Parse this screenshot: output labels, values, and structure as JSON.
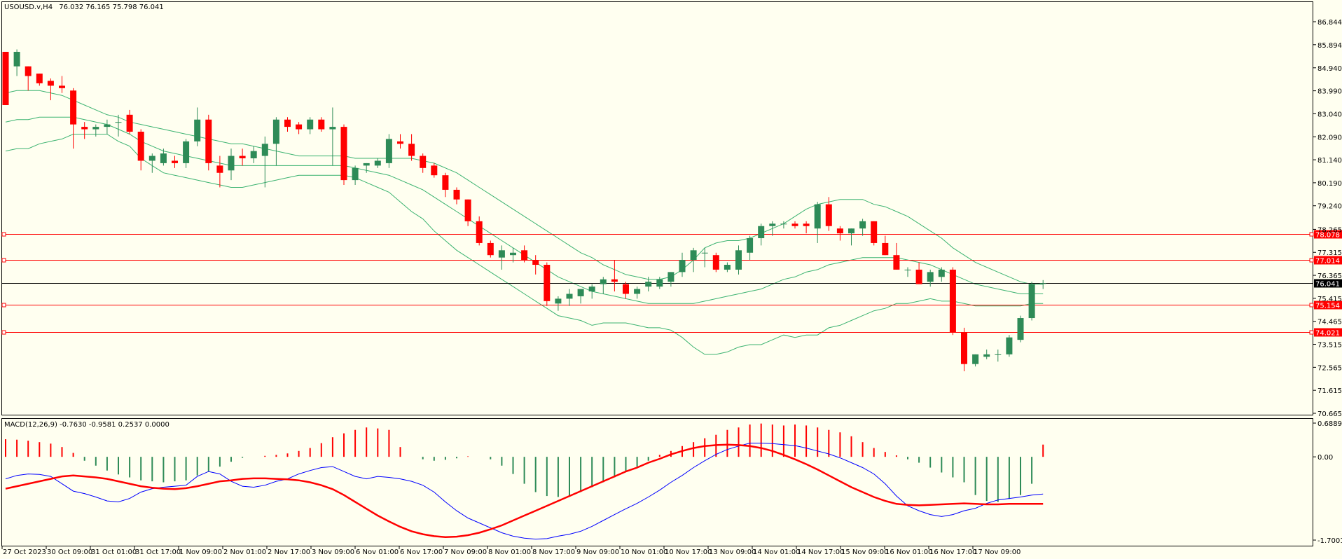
{
  "header": {
    "symbol": "USOUSD.v,H4",
    "ohlc": "76.032 76.165 75.798 76.041"
  },
  "macd_header": {
    "label": "MACD(12,26,9) -0.7630 -0.9581 0.2537 0.0000"
  },
  "colors": {
    "background": "#fffff0",
    "bull": "#2e8b57",
    "bear": "#ff0000",
    "bands": "#3cb371",
    "levels": "#ff0000",
    "price_line": "#000000",
    "macd_main": "#0000ff",
    "macd_signal": "#ff0000"
  },
  "chart_data": [
    {
      "type": "candlestick",
      "title": "USOUSD.v,H4",
      "ylim": [
        70.665,
        87.3
      ],
      "y_ticks": [
        "86.844",
        "85.894",
        "84.940",
        "83.990",
        "83.040",
        "82.090",
        "81.140",
        "80.190",
        "79.240",
        "78.265",
        "77.315",
        "76.365",
        "75.415",
        "74.465",
        "73.515",
        "72.565",
        "71.615",
        "70.665"
      ],
      "x_ticks": [
        "27 Oct 2023",
        "30 Oct 09:00",
        "31 Oct 01:00",
        "31 Oct 17:00",
        "1 Nov 09:00",
        "2 Nov 01:00",
        "2 Nov 17:00",
        "3 Nov 09:00",
        "6 Nov 01:00",
        "6 Nov 17:00",
        "7 Nov 09:00",
        "8 Nov 01:00",
        "8 Nov 17:00",
        "9 Nov 09:00",
        "10 Nov 01:00",
        "10 Nov 17:00",
        "13 Nov 09:00",
        "14 Nov 01:00",
        "14 Nov 17:00",
        "15 Nov 09:00",
        "16 Nov 01:00",
        "16 Nov 17:00",
        "17 Nov 09:00"
      ],
      "horizontal_levels": [
        "78.078",
        "77.014",
        "75.154",
        "74.021"
      ],
      "current_price": "76.041",
      "candles": [
        [
          85.6,
          85.6,
          83.4,
          83.4
        ],
        [
          85.0,
          85.7,
          84.6,
          85.6
        ],
        [
          85.0,
          85.0,
          84.0,
          84.6
        ],
        [
          84.7,
          84.7,
          84.2,
          84.3
        ],
        [
          84.4,
          84.5,
          83.6,
          84.2
        ],
        [
          84.2,
          84.6,
          83.9,
          84.1
        ],
        [
          84.0,
          84.1,
          81.6,
          82.6
        ],
        [
          82.5,
          82.7,
          82.0,
          82.4
        ],
        [
          82.4,
          82.6,
          82.1,
          82.5
        ],
        [
          82.5,
          82.8,
          82.2,
          82.6
        ],
        [
          82.7,
          83.0,
          82.1,
          82.7
        ],
        [
          83.0,
          83.2,
          82.2,
          82.3
        ],
        [
          82.3,
          82.4,
          80.7,
          81.1
        ],
        [
          81.1,
          81.4,
          80.6,
          81.3
        ],
        [
          81.0,
          81.6,
          80.9,
          81.4
        ],
        [
          81.1,
          81.3,
          80.8,
          81.0
        ],
        [
          81.0,
          82.0,
          80.8,
          81.9
        ],
        [
          81.9,
          83.3,
          81.7,
          82.8
        ],
        [
          82.8,
          83.0,
          80.7,
          81.0
        ],
        [
          80.9,
          81.3,
          80.0,
          80.6
        ],
        [
          80.7,
          81.6,
          80.3,
          81.3
        ],
        [
          81.3,
          81.6,
          80.9,
          81.2
        ],
        [
          81.2,
          81.7,
          81.0,
          81.5
        ],
        [
          81.3,
          82.1,
          80.0,
          81.8
        ],
        [
          81.8,
          82.9,
          80.9,
          82.8
        ],
        [
          82.8,
          82.9,
          82.3,
          82.5
        ],
        [
          82.6,
          82.7,
          82.2,
          82.4
        ],
        [
          82.4,
          82.9,
          82.2,
          82.8
        ],
        [
          82.8,
          82.9,
          82.3,
          82.4
        ],
        [
          82.4,
          83.3,
          80.9,
          82.5
        ],
        [
          82.5,
          82.6,
          80.1,
          80.3
        ],
        [
          80.3,
          80.9,
          80.1,
          80.8
        ],
        [
          80.9,
          81.0,
          80.6,
          81.0
        ],
        [
          80.9,
          81.2,
          80.8,
          81.1
        ],
        [
          81.0,
          82.2,
          80.8,
          82.0
        ],
        [
          81.9,
          82.2,
          81.6,
          81.8
        ],
        [
          81.8,
          82.2,
          81.1,
          81.3
        ],
        [
          81.3,
          81.4,
          80.6,
          80.8
        ],
        [
          80.9,
          81.0,
          80.4,
          80.5
        ],
        [
          80.5,
          80.6,
          79.6,
          79.9
        ],
        [
          79.9,
          80.0,
          79.3,
          79.5
        ],
        [
          79.5,
          79.5,
          78.4,
          78.6
        ],
        [
          78.6,
          78.8,
          77.6,
          77.7
        ],
        [
          77.7,
          77.8,
          77.1,
          77.2
        ],
        [
          77.1,
          77.6,
          76.6,
          77.4
        ],
        [
          77.2,
          77.5,
          76.9,
          77.3
        ],
        [
          77.4,
          77.6,
          76.9,
          77.0
        ],
        [
          77.0,
          77.2,
          76.4,
          76.8
        ],
        [
          76.8,
          76.9,
          75.1,
          75.3
        ],
        [
          75.2,
          75.5,
          74.9,
          75.4
        ],
        [
          75.4,
          75.8,
          75.1,
          75.6
        ],
        [
          75.5,
          75.8,
          75.2,
          75.8
        ],
        [
          75.7,
          76.0,
          75.4,
          75.9
        ],
        [
          76.0,
          76.3,
          75.6,
          76.2
        ],
        [
          76.2,
          77.0,
          75.7,
          76.1
        ],
        [
          76.0,
          76.1,
          75.4,
          75.6
        ],
        [
          75.6,
          75.9,
          75.4,
          75.8
        ],
        [
          75.9,
          76.3,
          75.7,
          76.1
        ],
        [
          75.9,
          76.3,
          75.8,
          76.2
        ],
        [
          76.1,
          76.5,
          75.9,
          76.5
        ],
        [
          76.5,
          77.3,
          76.3,
          77.0
        ],
        [
          77.0,
          77.5,
          76.5,
          77.4
        ],
        [
          77.3,
          77.5,
          76.7,
          77.3
        ],
        [
          77.2,
          77.3,
          76.5,
          76.6
        ],
        [
          76.6,
          76.9,
          76.5,
          76.8
        ],
        [
          76.6,
          77.6,
          76.4,
          77.4
        ],
        [
          77.3,
          78.0,
          77.0,
          77.9
        ],
        [
          77.9,
          78.5,
          77.6,
          78.4
        ],
        [
          78.4,
          78.6,
          78.0,
          78.5
        ],
        [
          78.5,
          78.6,
          78.3,
          78.5
        ],
        [
          78.5,
          78.6,
          78.3,
          78.4
        ],
        [
          78.5,
          78.6,
          78.1,
          78.4
        ],
        [
          78.3,
          79.4,
          77.7,
          79.3
        ],
        [
          79.3,
          79.6,
          78.2,
          78.4
        ],
        [
          78.3,
          78.4,
          77.8,
          78.1
        ],
        [
          78.1,
          78.3,
          77.6,
          78.3
        ],
        [
          78.3,
          78.7,
          78.0,
          78.6
        ],
        [
          78.6,
          78.6,
          77.6,
          77.7
        ],
        [
          77.7,
          78.0,
          77.2,
          77.2
        ],
        [
          77.2,
          77.7,
          76.6,
          76.6
        ],
        [
          76.6,
          76.7,
          76.3,
          76.6
        ],
        [
          76.6,
          76.9,
          76.0,
          76.0
        ],
        [
          76.1,
          76.6,
          75.9,
          76.5
        ],
        [
          76.3,
          76.7,
          76.1,
          76.6
        ],
        [
          76.6,
          76.7,
          73.9,
          74.0
        ],
        [
          74.0,
          74.2,
          72.4,
          72.7
        ],
        [
          72.7,
          73.1,
          72.6,
          73.1
        ],
        [
          73.0,
          73.3,
          72.9,
          73.1
        ],
        [
          73.1,
          73.3,
          72.8,
          73.1
        ],
        [
          73.1,
          73.9,
          73.0,
          73.8
        ],
        [
          73.7,
          74.7,
          73.6,
          74.6
        ],
        [
          74.6,
          76.1,
          74.5,
          76.0
        ],
        [
          76.03,
          76.17,
          75.8,
          76.04
        ]
      ],
      "upper_band": [
        83.9,
        84.0,
        84.0,
        84.0,
        83.9,
        83.8,
        83.6,
        83.4,
        83.2,
        83.0,
        82.9,
        82.7,
        82.6,
        82.5,
        82.4,
        82.3,
        82.2,
        82.1,
        82.0,
        81.9,
        81.8,
        81.8,
        81.7,
        81.6,
        81.5,
        81.4,
        81.3,
        81.3,
        81.3,
        81.3,
        81.3,
        81.2,
        81.2,
        81.2,
        81.2,
        81.2,
        81.2,
        81.1,
        81.0,
        80.8,
        80.6,
        80.3,
        80.0,
        79.7,
        79.4,
        79.1,
        78.8,
        78.5,
        78.2,
        77.9,
        77.6,
        77.3,
        77.1,
        76.8,
        76.6,
        76.4,
        76.3,
        76.2,
        76.2,
        76.3,
        76.6,
        77.0,
        77.5,
        77.7,
        77.8,
        77.8,
        77.9,
        78.1,
        78.3,
        78.5,
        78.8,
        79.1,
        79.3,
        79.4,
        79.5,
        79.5,
        79.5,
        79.3,
        79.2,
        79.0,
        78.8,
        78.5,
        78.2,
        77.9,
        77.5,
        77.2,
        76.9,
        76.7,
        76.5,
        76.3,
        76.1,
        76.0,
        76.0
      ],
      "middle_band": [
        82.7,
        82.8,
        82.8,
        82.9,
        82.9,
        82.9,
        82.9,
        82.8,
        82.7,
        82.6,
        82.4,
        82.2,
        81.9,
        81.7,
        81.5,
        81.4,
        81.3,
        81.2,
        81.1,
        81.0,
        80.9,
        80.9,
        80.9,
        80.9,
        80.9,
        80.9,
        80.9,
        80.9,
        80.9,
        80.9,
        80.9,
        80.8,
        80.7,
        80.6,
        80.5,
        80.3,
        80.1,
        79.9,
        79.6,
        79.3,
        79.0,
        78.7,
        78.4,
        78.1,
        77.8,
        77.5,
        77.2,
        76.9,
        76.6,
        76.3,
        76.1,
        75.9,
        75.7,
        75.6,
        75.5,
        75.4,
        75.3,
        75.2,
        75.2,
        75.2,
        75.2,
        75.2,
        75.3,
        75.4,
        75.5,
        75.6,
        75.7,
        75.8,
        76.0,
        76.2,
        76.3,
        76.5,
        76.6,
        76.8,
        76.9,
        77.0,
        77.1,
        77.1,
        77.1,
        77.1,
        77.0,
        76.9,
        76.8,
        76.6,
        76.4,
        76.2,
        76.0,
        75.9,
        75.8,
        75.7,
        75.6,
        75.6,
        75.6
      ],
      "lower_band": [
        81.5,
        81.6,
        81.6,
        81.8,
        81.9,
        82.0,
        82.2,
        82.2,
        82.2,
        82.2,
        81.9,
        81.7,
        81.2,
        80.9,
        80.6,
        80.5,
        80.4,
        80.3,
        80.2,
        80.1,
        80.0,
        80.0,
        80.1,
        80.2,
        80.3,
        80.4,
        80.5,
        80.5,
        80.5,
        80.5,
        80.5,
        80.4,
        80.2,
        80.0,
        79.8,
        79.4,
        79.0,
        78.7,
        78.2,
        77.8,
        77.4,
        77.1,
        76.8,
        76.5,
        76.2,
        75.9,
        75.6,
        75.3,
        75.0,
        74.7,
        74.6,
        74.5,
        74.3,
        74.4,
        74.4,
        74.4,
        74.3,
        74.2,
        74.2,
        74.1,
        73.8,
        73.4,
        73.1,
        73.1,
        73.2,
        73.4,
        73.5,
        73.5,
        73.7,
        73.9,
        73.8,
        73.9,
        73.9,
        74.2,
        74.3,
        74.5,
        74.7,
        74.9,
        75.0,
        75.2,
        75.2,
        75.3,
        75.4,
        75.3,
        75.3,
        75.2,
        75.1,
        75.1,
        75.1,
        75.1,
        75.1,
        75.2,
        75.2
      ]
    },
    {
      "type": "macd",
      "title": "MACD(12,26,9) -0.7630 -0.9581 0.2537 0.0000",
      "ylim": [
        -1.7001,
        0.6889
      ],
      "y_ticks": [
        "0.6889",
        "0.00",
        "-1.7001"
      ],
      "histogram": [
        0.36,
        0.35,
        0.33,
        0.3,
        0.27,
        0.2,
        0.08,
        -0.08,
        -0.18,
        -0.28,
        -0.36,
        -0.42,
        -0.48,
        -0.5,
        -0.52,
        -0.5,
        -0.48,
        -0.38,
        -0.3,
        -0.2,
        -0.1,
        -0.02,
        0.0,
        0.02,
        0.04,
        0.07,
        0.12,
        0.18,
        0.28,
        0.4,
        0.48,
        0.55,
        0.6,
        0.58,
        0.55,
        0.2,
        0.0,
        -0.05,
        -0.08,
        -0.06,
        -0.03,
        0.01,
        0.0,
        -0.05,
        -0.18,
        -0.35,
        -0.55,
        -0.72,
        -0.8,
        -0.82,
        -0.8,
        -0.72,
        -0.62,
        -0.52,
        -0.42,
        -0.3,
        -0.2,
        -0.08,
        0.04,
        0.12,
        0.22,
        0.3,
        0.38,
        0.45,
        0.55,
        0.6,
        0.66,
        0.68,
        0.66,
        0.64,
        0.66,
        0.64,
        0.6,
        0.55,
        0.5,
        0.42,
        0.3,
        0.18,
        0.1,
        0.03,
        -0.05,
        -0.12,
        -0.22,
        -0.32,
        -0.42,
        -0.52,
        -0.78,
        -0.9,
        -0.92,
        -0.86,
        -0.78,
        -0.55,
        0.25
      ],
      "main": [
        -0.45,
        -0.38,
        -0.35,
        -0.36,
        -0.4,
        -0.55,
        -0.7,
        -0.75,
        -0.82,
        -0.9,
        -0.92,
        -0.85,
        -0.72,
        -0.65,
        -0.62,
        -0.6,
        -0.58,
        -0.4,
        -0.3,
        -0.35,
        -0.5,
        -0.6,
        -0.62,
        -0.58,
        -0.5,
        -0.45,
        -0.35,
        -0.28,
        -0.22,
        -0.2,
        -0.3,
        -0.4,
        -0.45,
        -0.4,
        -0.42,
        -0.45,
        -0.5,
        -0.58,
        -0.72,
        -0.92,
        -1.1,
        -1.25,
        -1.35,
        -1.45,
        -1.55,
        -1.62,
        -1.66,
        -1.68,
        -1.67,
        -1.62,
        -1.58,
        -1.52,
        -1.42,
        -1.3,
        -1.18,
        -1.06,
        -0.95,
        -0.82,
        -0.68,
        -0.52,
        -0.38,
        -0.22,
        -0.08,
        0.05,
        0.15,
        0.22,
        0.28,
        0.28,
        0.27,
        0.25,
        0.23,
        0.18,
        0.12,
        0.06,
        -0.02,
        -0.12,
        -0.22,
        -0.35,
        -0.55,
        -0.8,
        -1.0,
        -1.1,
        -1.18,
        -1.22,
        -1.18,
        -1.1,
        -1.05,
        -0.95,
        -0.88,
        -0.85,
        -0.82,
        -0.78,
        -0.76
      ],
      "signal": [
        -0.65,
        -0.6,
        -0.55,
        -0.5,
        -0.45,
        -0.4,
        -0.38,
        -0.4,
        -0.42,
        -0.45,
        -0.5,
        -0.55,
        -0.6,
        -0.63,
        -0.65,
        -0.66,
        -0.64,
        -0.6,
        -0.55,
        -0.5,
        -0.48,
        -0.45,
        -0.44,
        -0.44,
        -0.45,
        -0.46,
        -0.48,
        -0.52,
        -0.58,
        -0.66,
        -0.78,
        -0.92,
        -1.06,
        -1.2,
        -1.32,
        -1.43,
        -1.52,
        -1.58,
        -1.62,
        -1.64,
        -1.63,
        -1.6,
        -1.55,
        -1.48,
        -1.4,
        -1.3,
        -1.2,
        -1.1,
        -1.0,
        -0.9,
        -0.8,
        -0.7,
        -0.6,
        -0.5,
        -0.4,
        -0.3,
        -0.22,
        -0.12,
        -0.04,
        0.05,
        0.12,
        0.18,
        0.22,
        0.24,
        0.25,
        0.24,
        0.22,
        0.18,
        0.12,
        0.04,
        -0.05,
        -0.15,
        -0.26,
        -0.38,
        -0.5,
        -0.62,
        -0.72,
        -0.82,
        -0.9,
        -0.96,
        -0.98,
        -0.99,
        -0.98,
        -0.97,
        -0.96,
        -0.95,
        -0.96,
        -0.97,
        -0.97,
        -0.96,
        -0.96,
        -0.96,
        -0.96
      ]
    }
  ]
}
